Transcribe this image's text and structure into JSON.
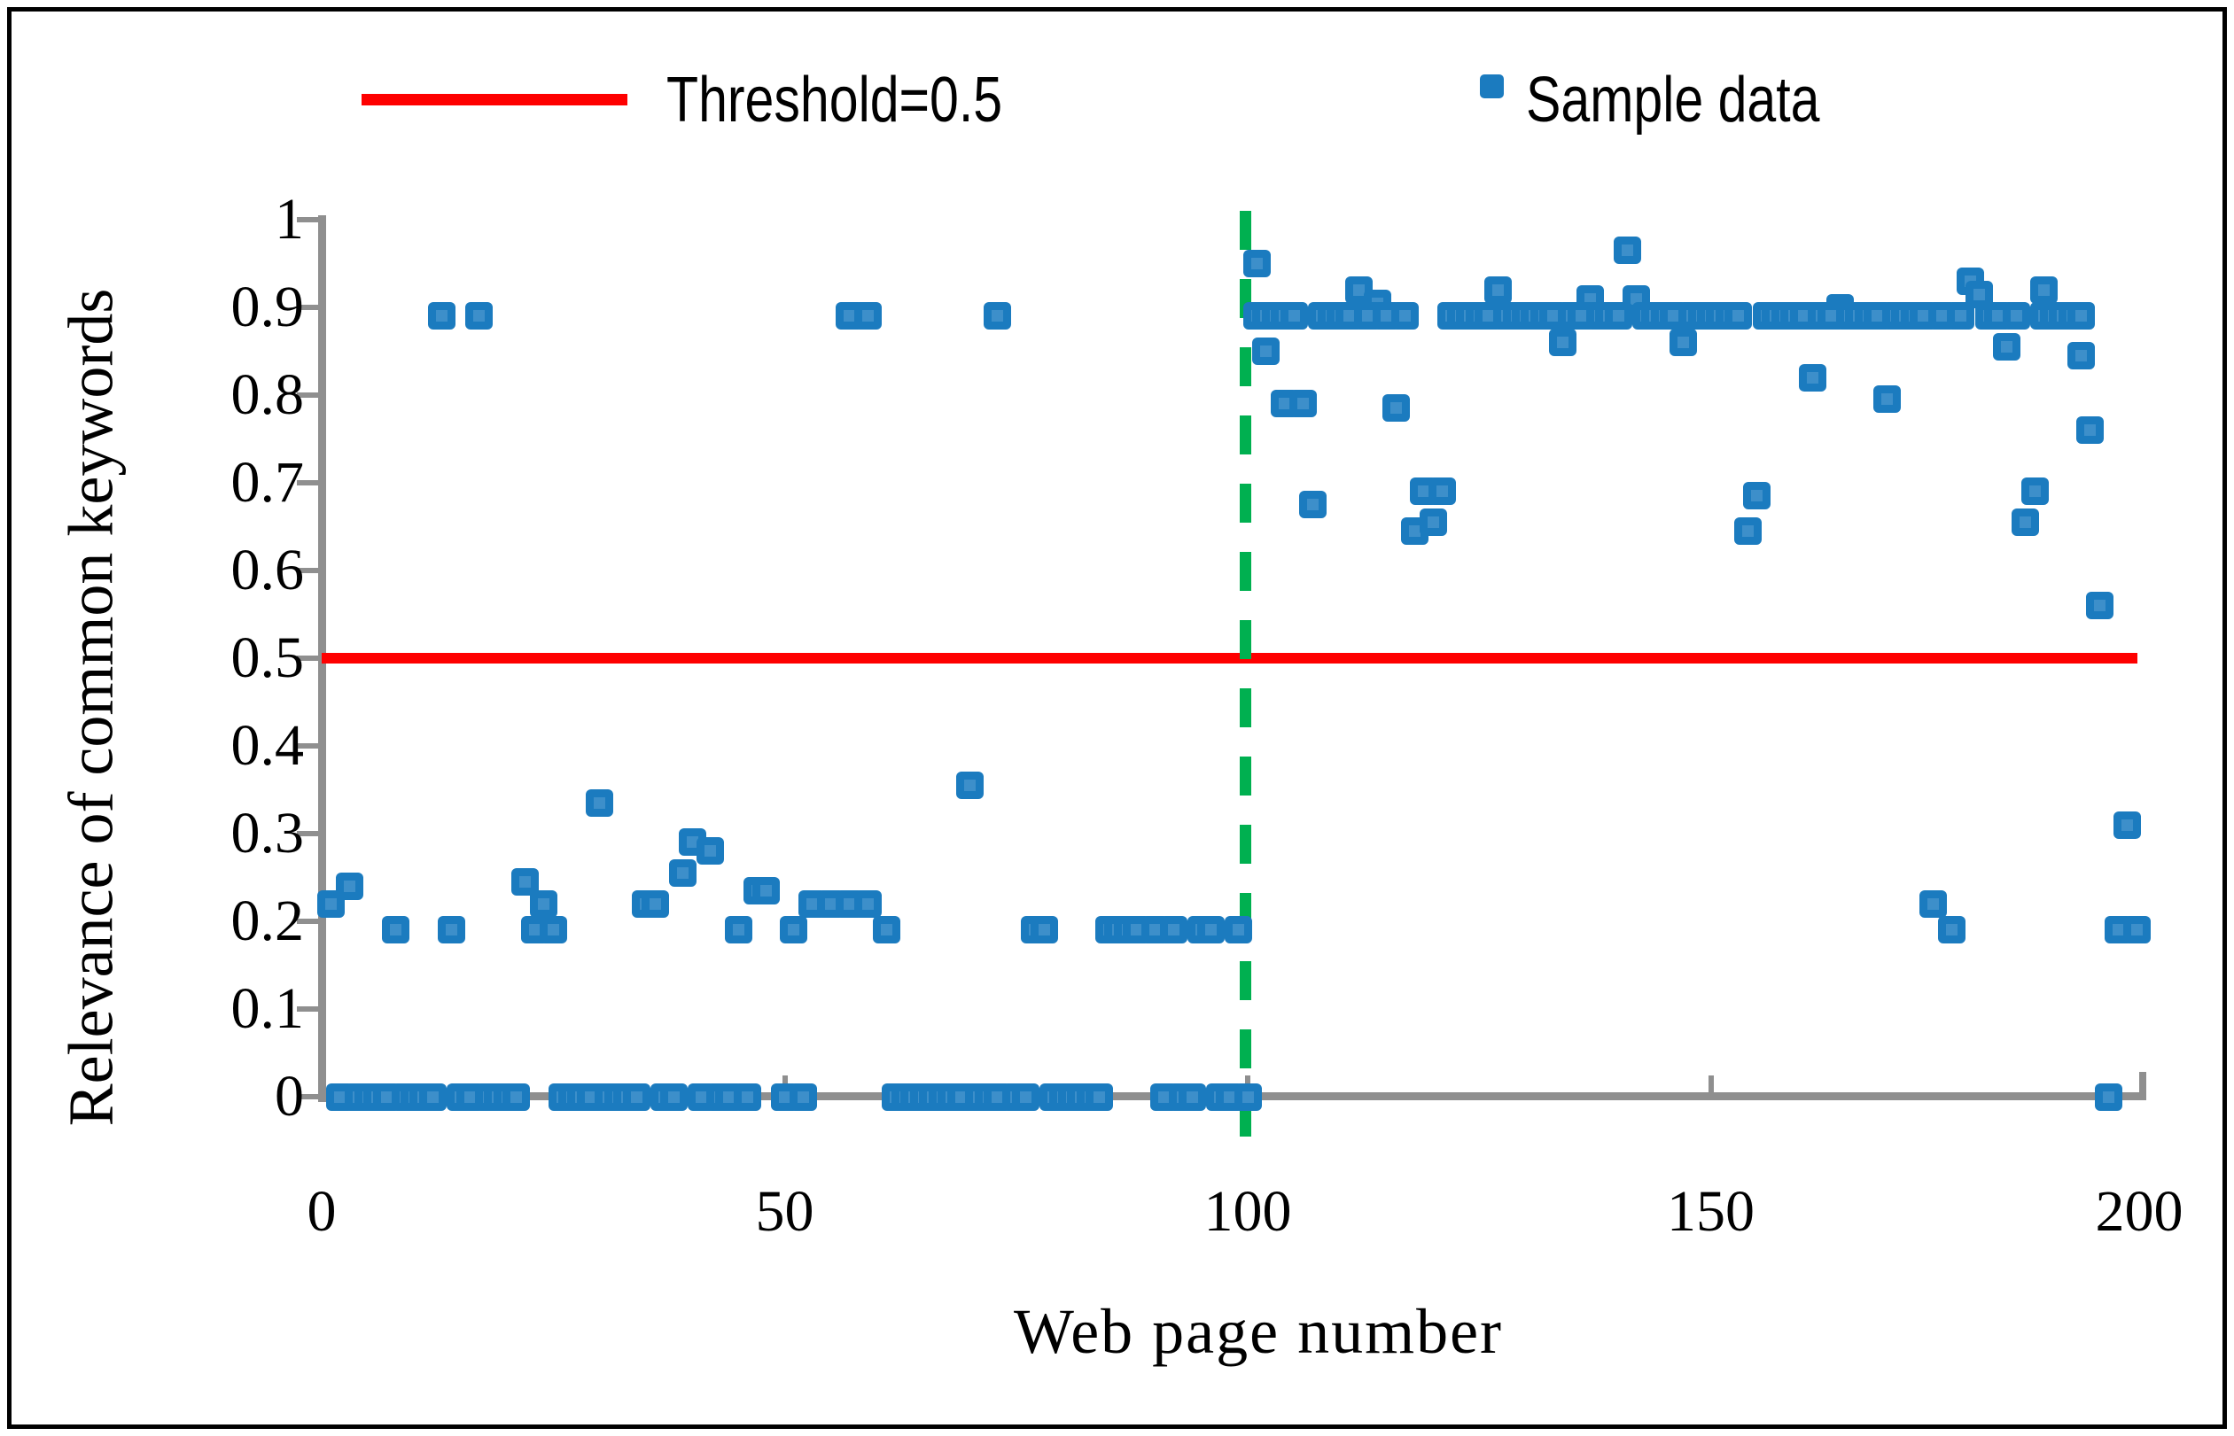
{
  "figure": {
    "background": "#ffffff",
    "border_color": "#000000"
  },
  "legend": {
    "threshold_label": "Threshold=0.5",
    "sample_label": "Sample data"
  },
  "colors": {
    "marker": "#1b7bbf",
    "threshold": "#fe0000",
    "divider": "#00b050",
    "axis": "#8f8f8f",
    "text": "#000000"
  },
  "chart_data": {
    "type": "scatter",
    "title": "",
    "xlabel": "Web page number",
    "ylabel": "Relevance of common keywords",
    "xlim": [
      0,
      200
    ],
    "ylim": [
      0,
      1
    ],
    "x_ticks": [
      0,
      50,
      100,
      150,
      200
    ],
    "x_tick_labels": [
      "0",
      "50",
      "100",
      "150",
      "200"
    ],
    "y_ticks": [
      0,
      0.1,
      0.2,
      0.3,
      0.4,
      0.5,
      0.6,
      0.7,
      0.8,
      0.9,
      1
    ],
    "y_tick_labels": [
      "0",
      "0.1",
      "0.2",
      "0.3",
      "0.4",
      "0.5",
      "0.6",
      "0.7",
      "0.8",
      "0.9",
      "1"
    ],
    "grid": false,
    "legend_position": "top",
    "threshold": {
      "value": 0.5,
      "label": "Threshold=0.5"
    },
    "divider": {
      "x": 100,
      "style": "dashed"
    },
    "series": [
      {
        "name": "Sample data",
        "marker": "square",
        "points": [
          [
            1,
            0.22
          ],
          [
            3,
            0.24
          ],
          [
            8,
            0.19
          ],
          [
            14,
            0.19
          ],
          [
            22,
            0.245
          ],
          [
            23,
            0.19
          ],
          [
            24,
            0.22
          ],
          [
            25,
            0.19
          ],
          [
            30,
            0.335
          ],
          [
            35,
            0.22
          ],
          [
            36,
            0.22
          ],
          [
            39,
            0.255
          ],
          [
            40,
            0.29
          ],
          [
            42,
            0.28
          ],
          [
            45,
            0.19
          ],
          [
            47,
            0.235
          ],
          [
            48,
            0.235
          ],
          [
            51,
            0.19
          ],
          [
            53,
            0.22
          ],
          [
            55,
            0.22
          ],
          [
            57,
            0.22
          ],
          [
            59,
            0.22
          ],
          [
            61,
            0.19
          ],
          [
            70,
            0.355
          ],
          [
            77,
            0.19
          ],
          [
            78,
            0.19
          ],
          [
            85,
            0.19
          ],
          [
            86,
            0.19
          ],
          [
            87,
            0.19
          ],
          [
            88,
            0.19
          ],
          [
            90,
            0.19
          ],
          [
            92,
            0.19
          ],
          [
            95,
            0.19
          ],
          [
            96,
            0.19
          ],
          [
            99,
            0.19
          ],
          [
            13,
            0.89
          ],
          [
            17,
            0.89
          ],
          [
            57,
            0.89
          ],
          [
            59,
            0.89
          ],
          [
            73,
            0.89
          ],
          [
            2,
            0
          ],
          [
            4,
            0
          ],
          [
            5,
            0
          ],
          [
            6,
            0
          ],
          [
            7,
            0
          ],
          [
            9,
            0
          ],
          [
            10,
            0
          ],
          [
            11,
            0
          ],
          [
            12,
            0
          ],
          [
            15,
            0
          ],
          [
            16,
            0
          ],
          [
            18,
            0
          ],
          [
            19,
            0
          ],
          [
            20,
            0
          ],
          [
            21,
            0
          ],
          [
            26,
            0
          ],
          [
            27,
            0
          ],
          [
            28,
            0
          ],
          [
            29,
            0
          ],
          [
            31,
            0
          ],
          [
            32,
            0
          ],
          [
            33,
            0
          ],
          [
            34,
            0
          ],
          [
            37,
            0
          ],
          [
            38,
            0
          ],
          [
            41,
            0
          ],
          [
            43,
            0
          ],
          [
            44,
            0
          ],
          [
            46,
            0
          ],
          [
            50,
            0
          ],
          [
            52,
            0
          ],
          [
            62,
            0
          ],
          [
            63,
            0
          ],
          [
            64,
            0
          ],
          [
            65,
            0
          ],
          [
            66,
            0
          ],
          [
            67,
            0
          ],
          [
            68,
            0
          ],
          [
            69,
            0
          ],
          [
            71,
            0
          ],
          [
            72,
            0
          ],
          [
            73,
            0
          ],
          [
            75,
            0
          ],
          [
            76,
            0
          ],
          [
            79,
            0
          ],
          [
            80,
            0
          ],
          [
            81,
            0
          ],
          [
            82,
            0
          ],
          [
            83,
            0
          ],
          [
            84,
            0
          ],
          [
            91,
            0
          ],
          [
            93,
            0
          ],
          [
            94,
            0
          ],
          [
            97,
            0
          ],
          [
            98,
            0
          ],
          [
            100,
            0
          ],
          [
            101,
            0.95
          ],
          [
            102,
            0.85
          ],
          [
            104,
            0.79
          ],
          [
            106,
            0.79
          ],
          [
            107,
            0.675
          ],
          [
            112,
            0.92
          ],
          [
            114,
            0.905
          ],
          [
            116,
            0.785
          ],
          [
            118,
            0.645
          ],
          [
            119,
            0.69
          ],
          [
            120,
            0.655
          ],
          [
            121,
            0.69
          ],
          [
            127,
            0.92
          ],
          [
            134,
            0.86
          ],
          [
            137,
            0.91
          ],
          [
            141,
            0.965
          ],
          [
            142,
            0.91
          ],
          [
            147,
            0.86
          ],
          [
            154,
            0.645
          ],
          [
            155,
            0.685
          ],
          [
            161,
            0.82
          ],
          [
            164,
            0.9
          ],
          [
            169,
            0.795
          ],
          [
            174,
            0.22
          ],
          [
            176,
            0.19
          ],
          [
            178,
            0.93
          ],
          [
            179,
            0.915
          ],
          [
            182,
            0.855
          ],
          [
            184,
            0.655
          ],
          [
            185,
            0.69
          ],
          [
            186,
            0.92
          ],
          [
            190,
            0.845
          ],
          [
            191,
            0.76
          ],
          [
            192,
            0.56
          ],
          [
            193,
            0
          ],
          [
            194,
            0.19
          ],
          [
            195,
            0.31
          ],
          [
            196,
            0.19
          ],
          [
            101,
            0.89
          ],
          [
            102,
            0.89
          ],
          [
            103,
            0.89
          ],
          [
            104,
            0.89
          ],
          [
            105,
            0.89
          ],
          [
            108,
            0.89
          ],
          [
            109,
            0.89
          ],
          [
            110,
            0.89
          ],
          [
            111,
            0.89
          ],
          [
            113,
            0.89
          ],
          [
            115,
            0.89
          ],
          [
            117,
            0.89
          ],
          [
            122,
            0.89
          ],
          [
            123,
            0.89
          ],
          [
            124,
            0.89
          ],
          [
            125,
            0.89
          ],
          [
            126,
            0.89
          ],
          [
            128,
            0.89
          ],
          [
            129,
            0.89
          ],
          [
            130,
            0.89
          ],
          [
            131,
            0.89
          ],
          [
            132,
            0.89
          ],
          [
            133,
            0.89
          ],
          [
            135,
            0.89
          ],
          [
            136,
            0.89
          ],
          [
            138,
            0.89
          ],
          [
            139,
            0.89
          ],
          [
            140,
            0.89
          ],
          [
            143,
            0.89
          ],
          [
            144,
            0.89
          ],
          [
            145,
            0.89
          ],
          [
            146,
            0.89
          ],
          [
            148,
            0.89
          ],
          [
            149,
            0.89
          ],
          [
            150,
            0.89
          ],
          [
            151,
            0.89
          ],
          [
            152,
            0.89
          ],
          [
            153,
            0.89
          ],
          [
            156,
            0.89
          ],
          [
            157,
            0.89
          ],
          [
            158,
            0.89
          ],
          [
            159,
            0.89
          ],
          [
            160,
            0.89
          ],
          [
            162,
            0.89
          ],
          [
            163,
            0.89
          ],
          [
            165,
            0.89
          ],
          [
            166,
            0.89
          ],
          [
            167,
            0.89
          ],
          [
            168,
            0.89
          ],
          [
            170,
            0.89
          ],
          [
            171,
            0.89
          ],
          [
            172,
            0.89
          ],
          [
            173,
            0.89
          ],
          [
            175,
            0.89
          ],
          [
            177,
            0.89
          ],
          [
            180,
            0.89
          ],
          [
            181,
            0.89
          ],
          [
            183,
            0.89
          ],
          [
            186,
            0.89
          ],
          [
            187,
            0.89
          ],
          [
            188,
            0.89
          ],
          [
            189,
            0.89
          ],
          [
            190,
            0.89
          ]
        ]
      }
    ]
  }
}
